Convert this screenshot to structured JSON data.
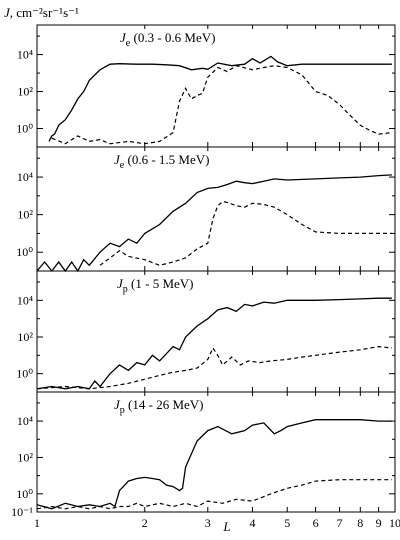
{
  "chart_data": {
    "type": "line",
    "xlabel": "L",
    "ylabel_prefix": "J",
    "ylabel_units": ", cm⁻²sr⁻¹s⁻¹",
    "xscale": "log",
    "yscale": "log",
    "xlim": [
      1,
      10
    ],
    "x_ticks": [
      1,
      2,
      3,
      4,
      5,
      6,
      7,
      8,
      9,
      10
    ],
    "x_tick_labels": [
      "1",
      "2",
      "3",
      "4",
      "5",
      "6",
      "7",
      "8",
      "9",
      "10"
    ],
    "panels": [
      {
        "label_main": "J",
        "label_sub": "e",
        "label_rest": " (0.3 - 0.6 MeV)",
        "ylim": [
          0.1,
          100000
        ],
        "y_ticks": [
          1,
          100,
          10000
        ],
        "y_tick_labels": [
          "10⁰",
          "10²",
          "10⁴"
        ],
        "series": [
          {
            "style": "solid",
            "x": [
              1.08,
              1.1,
              1.12,
              1.15,
              1.2,
              1.25,
              1.3,
              1.35,
              1.4,
              1.5,
              1.6,
              1.7,
              1.9,
              2.1,
              2.3,
              2.5,
              2.7,
              2.9,
              3.0,
              3.2,
              3.5,
              3.8,
              4.0,
              4.2,
              4.5,
              4.7,
              5.0,
              5.5,
              6.0,
              7.0,
              8.0,
              9.0,
              9.8
            ],
            "y": [
              0.2,
              0.4,
              0.5,
              1.5,
              3,
              10,
              40,
              100,
              400,
              1500,
              3000,
              3200,
              3000,
              3000,
              2800,
              2500,
              1500,
              1800,
              1600,
              3500,
              2500,
              3000,
              6000,
              3500,
              8000,
              4000,
              2500,
              3000,
              3000,
              3000,
              3000,
              3000,
              3000
            ]
          },
          {
            "style": "dashed",
            "x": [
              1.1,
              1.2,
              1.3,
              1.4,
              1.5,
              1.6,
              1.8,
              2.0,
              2.2,
              2.4,
              2.5,
              2.6,
              2.7,
              2.8,
              2.9,
              3.0,
              3.2,
              3.4,
              3.6,
              4.0,
              4.3,
              4.6,
              5.0,
              5.5,
              6.0,
              6.5,
              7.0,
              7.5,
              8.0,
              8.5,
              9.0,
              9.8
            ],
            "y": [
              0.3,
              0.15,
              0.4,
              0.2,
              0.25,
              0.15,
              0.2,
              0.15,
              0.2,
              0.6,
              30,
              150,
              40,
              60,
              80,
              600,
              2000,
              1200,
              2500,
              1500,
              2000,
              2500,
              2000,
              800,
              100,
              60,
              20,
              5,
              1.5,
              0.8,
              0.5,
              0.6
            ]
          }
        ]
      },
      {
        "label_main": "J",
        "label_sub": "e",
        "label_rest": " (0.6 - 1.5 MeV)",
        "ylim": [
          0.1,
          100000
        ],
        "y_ticks": [
          1,
          100,
          10000
        ],
        "y_tick_labels": [
          "10⁰",
          "10²",
          "10⁴"
        ],
        "series": [
          {
            "style": "solid",
            "x": [
              1.0,
              1.05,
              1.1,
              1.15,
              1.2,
              1.25,
              1.3,
              1.35,
              1.4,
              1.5,
              1.6,
              1.7,
              1.8,
              1.9,
              2.0,
              2.2,
              2.4,
              2.6,
              2.8,
              3.0,
              3.2,
              3.4,
              3.6,
              3.8,
              4.0,
              4.3,
              4.6,
              5.0,
              6.0,
              7.0,
              8.0,
              9.0,
              9.8
            ],
            "y": [
              0.1,
              0.3,
              0.1,
              0.3,
              0.1,
              0.3,
              0.1,
              0.4,
              0.2,
              1,
              3,
              2,
              5,
              3,
              10,
              30,
              150,
              400,
              1500,
              2500,
              2800,
              4000,
              6000,
              5000,
              4500,
              6000,
              8000,
              7000,
              8000,
              9000,
              10000,
              12000,
              13000
            ]
          },
          {
            "style": "dashed",
            "x": [
              1.5,
              1.6,
              1.7,
              1.8,
              2.0,
              2.2,
              2.4,
              2.6,
              2.8,
              3.0,
              3.1,
              3.2,
              3.3,
              3.4,
              3.6,
              3.8,
              4.0,
              4.3,
              4.6,
              5.0,
              5.5,
              6.0,
              7.0,
              8.0,
              9.0,
              9.8
            ],
            "y": [
              0.2,
              0.5,
              1.2,
              0.6,
              0.4,
              0.2,
              0.3,
              0.5,
              1.5,
              3,
              60,
              300,
              500,
              450,
              300,
              250,
              400,
              350,
              250,
              100,
              30,
              12,
              10,
              10,
              10,
              10
            ]
          }
        ]
      },
      {
        "label_main": "J",
        "label_sub": "p",
        "label_rest": "  (1 - 5 MeV)",
        "ylim": [
          0.1,
          100000
        ],
        "y_ticks": [
          1,
          100,
          10000
        ],
        "y_tick_labels": [
          "10⁰",
          "10²",
          "10⁴"
        ],
        "series": [
          {
            "style": "solid",
            "x": [
              1.0,
              1.1,
              1.2,
              1.3,
              1.4,
              1.45,
              1.5,
              1.6,
              1.7,
              1.8,
              1.9,
              2.0,
              2.1,
              2.2,
              2.4,
              2.5,
              2.6,
              2.8,
              3.0,
              3.2,
              3.4,
              3.6,
              3.8,
              4.0,
              4.3,
              4.6,
              5.0,
              6.0,
              7.0,
              8.0,
              9.0,
              9.8
            ],
            "y": [
              0.15,
              0.2,
              0.15,
              0.2,
              0.15,
              0.4,
              0.2,
              1,
              3,
              1.5,
              4,
              3,
              10,
              5,
              30,
              20,
              100,
              400,
              1000,
              3000,
              4000,
              2500,
              6000,
              5000,
              8000,
              7000,
              10000,
              10000,
              11000,
              12000,
              13000,
              13000
            ]
          },
          {
            "style": "dashed",
            "x": [
              1.0,
              1.2,
              1.4,
              1.6,
              1.8,
              2.0,
              2.2,
              2.4,
              2.6,
              2.8,
              3.0,
              3.1,
              3.2,
              3.3,
              3.5,
              3.7,
              3.9,
              4.2,
              4.5,
              5.0,
              5.5,
              6.0,
              7.0,
              8.0,
              9.0,
              9.8
            ],
            "y": [
              0.15,
              0.2,
              0.15,
              0.2,
              0.3,
              0.5,
              0.8,
              1.2,
              1.5,
              2,
              6,
              25,
              10,
              3,
              8,
              3,
              5,
              4,
              5,
              6,
              8,
              10,
              15,
              20,
              30,
              25
            ]
          }
        ]
      },
      {
        "label_main": "J",
        "label_sub": "p",
        "label_rest": " (14 - 26 MeV)",
        "ylim": [
          0.1,
          100000
        ],
        "y_ticks": [
          0.1,
          1,
          100,
          10000
        ],
        "y_tick_labels": [
          "10⁻¹",
          "10⁰",
          "10²",
          "10⁴"
        ],
        "series": [
          {
            "style": "solid",
            "x": [
              1.0,
              1.1,
              1.2,
              1.3,
              1.4,
              1.5,
              1.6,
              1.65,
              1.7,
              1.8,
              1.9,
              2.0,
              2.1,
              2.2,
              2.3,
              2.4,
              2.5,
              2.55,
              2.6,
              2.8,
              3.0,
              3.2,
              3.5,
              3.8,
              4.0,
              4.3,
              4.6,
              4.8,
              5.0,
              5.5,
              6.0,
              7.0,
              8.0,
              9.0,
              9.8
            ],
            "y": [
              0.25,
              0.15,
              0.3,
              0.2,
              0.25,
              0.2,
              0.3,
              0.2,
              1.5,
              5,
              7,
              8,
              7,
              6,
              3,
              2.5,
              1.5,
              2,
              30,
              800,
              3000,
              5000,
              2000,
              3000,
              6000,
              8000,
              2000,
              3000,
              5000,
              8000,
              12000,
              12000,
              12000,
              10000,
              10000
            ]
          },
          {
            "style": "dashed",
            "x": [
              1.0,
              1.1,
              1.2,
              1.3,
              1.4,
              1.5,
              1.6,
              1.7,
              1.8,
              1.9,
              2.0,
              2.2,
              2.4,
              2.6,
              2.8,
              3.0,
              3.3,
              3.6,
              4.0,
              4.5,
              5.0,
              5.5,
              6.0,
              7.0,
              8.0,
              9.0,
              9.8
            ],
            "y": [
              0.15,
              0.2,
              0.15,
              0.2,
              0.15,
              0.2,
              0.15,
              0.2,
              0.2,
              0.3,
              0.2,
              0.3,
              0.2,
              0.3,
              0.2,
              0.4,
              0.3,
              0.5,
              0.4,
              1,
              2,
              3,
              5,
              6,
              6,
              6,
              6
            ]
          }
        ]
      }
    ]
  }
}
